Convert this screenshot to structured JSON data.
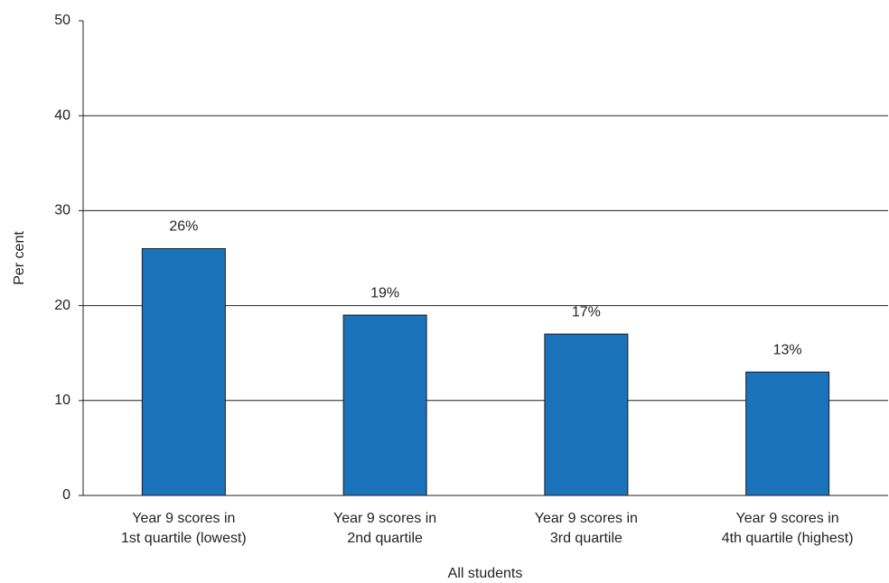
{
  "chart_data": {
    "type": "bar",
    "categories": [
      [
        "Year 9 scores in",
        "1st quartile (lowest)"
      ],
      [
        "Year 9 scores in",
        "2nd quartile"
      ],
      [
        "Year 9 scores in",
        "3rd quartile"
      ],
      [
        "Year 9 scores in",
        "4th quartile (highest)"
      ]
    ],
    "values": [
      26,
      19,
      17,
      13
    ],
    "value_labels": [
      "26%",
      "19%",
      "17%",
      "13%"
    ],
    "color": "#1a72bb",
    "y_label": "Per cent",
    "x_label": "All students",
    "ylim": [
      0,
      50
    ],
    "yticks": [
      0,
      10,
      20,
      30,
      40,
      50
    ],
    "grid": true
  }
}
